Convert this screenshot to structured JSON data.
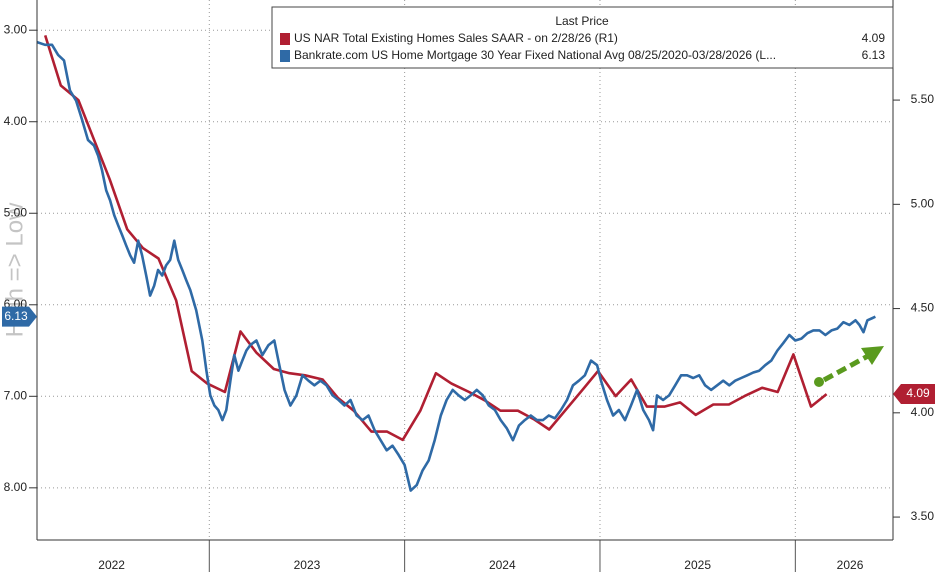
{
  "chart_data": {
    "type": "line",
    "y_label": "High => Low",
    "legend_title": "Last Price",
    "invert_y": true,
    "grid": true,
    "xlim": [
      2022.118,
      2026.5
    ],
    "xticks": [
      {
        "value": 2022.5,
        "label": "2022"
      },
      {
        "value": 2023.5,
        "label": "2023"
      },
      {
        "value": 2024.5,
        "label": "2024"
      },
      {
        "value": 2025.5,
        "label": "2025"
      },
      {
        "value": 2026.28,
        "label": "2026"
      }
    ],
    "ylim": [
      2.67,
      8.57
    ],
    "yticks": [
      {
        "value": 3,
        "label": "3.00"
      },
      {
        "value": 4,
        "label": "4.00"
      },
      {
        "value": 5,
        "label": "5.00"
      },
      {
        "value": 6,
        "label": "6.00"
      },
      {
        "value": 7,
        "label": "7.00"
      },
      {
        "value": 8,
        "label": "8.00"
      }
    ],
    "y2lim": [
      3.39,
      5.98
    ],
    "y2ticks": [
      {
        "value": 3.5,
        "label": "3.50"
      },
      {
        "value": 4,
        "label": "4.00"
      },
      {
        "value": 4.5,
        "label": "4.50"
      },
      {
        "value": 5,
        "label": "5.00"
      },
      {
        "value": 5.5,
        "label": "5.50"
      }
    ],
    "series": [
      {
        "name": "US NAR Total Existing Homes Sales SAAR -  on 2/28/26  (R1)",
        "color": "#b01f32",
        "axis": "y2",
        "last_price_label": "4.09",
        "x": [
          2022.16,
          2022.24,
          2022.33,
          2022.41,
          2022.49,
          2022.58,
          2022.66,
          2022.74,
          2022.83,
          2022.91,
          2022.99,
          2023.08,
          2023.16,
          2023.24,
          2023.33,
          2023.41,
          2023.49,
          2023.58,
          2023.66,
          2023.74,
          2023.83,
          2023.91,
          2023.99,
          2024.08,
          2024.16,
          2024.24,
          2024.33,
          2024.41,
          2024.49,
          2024.58,
          2024.66,
          2024.74,
          2024.83,
          2024.91,
          2024.99,
          2025.08,
          2025.16,
          2025.24,
          2025.33,
          2025.41,
          2025.49,
          2025.58,
          2025.66,
          2025.74,
          2025.83,
          2025.91,
          2025.99,
          2026.08,
          2026.16
        ],
        "values": [
          5.81,
          5.57,
          5.5,
          5.31,
          5.12,
          4.88,
          4.79,
          4.74,
          4.54,
          4.2,
          4.14,
          4.1,
          4.39,
          4.29,
          4.21,
          4.19,
          4.18,
          4.16,
          4.07,
          4.01,
          3.91,
          3.91,
          3.87,
          4.01,
          4.19,
          4.14,
          4.1,
          4.06,
          4.01,
          4.01,
          3.97,
          3.92,
          4.02,
          4.11,
          4.2,
          4.08,
          4.16,
          4.03,
          4.03,
          4.05,
          3.99,
          4.04,
          4.04,
          4.08,
          4.12,
          4.1,
          4.28,
          4.03,
          4.09
        ]
      },
      {
        "name": "Bankrate.com US Home Mortgage 30 Year Fixed National Avg 08/25/2020-03/28/2026  (L...",
        "color": "#2f6aa6",
        "axis": "y",
        "last_price_label": "6.13",
        "x": [
          2022.118,
          2022.159,
          2022.195,
          2022.226,
          2022.256,
          2022.287,
          2022.318,
          2022.349,
          2022.379,
          2022.41,
          2022.431,
          2022.451,
          2022.472,
          2022.492,
          2022.513,
          2022.533,
          2022.554,
          2022.574,
          2022.595,
          2022.615,
          2022.636,
          2022.656,
          2022.677,
          2022.697,
          2022.718,
          2022.738,
          2022.759,
          2022.779,
          2022.8,
          2022.821,
          2022.841,
          2022.862,
          2022.882,
          2022.903,
          2022.933,
          2022.964,
          2022.985,
          2023.005,
          2023.026,
          2023.046,
          2023.067,
          2023.087,
          2023.108,
          2023.128,
          2023.149,
          2023.169,
          2023.19,
          2023.21,
          2023.241,
          2023.272,
          2023.303,
          2023.333,
          2023.354,
          2023.385,
          2023.415,
          2023.446,
          2023.477,
          2023.508,
          2023.538,
          2023.569,
          2023.6,
          2023.631,
          2023.662,
          2023.692,
          2023.723,
          2023.754,
          2023.785,
          2023.815,
          2023.846,
          2023.877,
          2023.908,
          2023.938,
          2023.969,
          2024.0,
          2024.031,
          2024.062,
          2024.092,
          2024.123,
          2024.154,
          2024.185,
          2024.215,
          2024.246,
          2024.277,
          2024.308,
          2024.338,
          2024.369,
          2024.4,
          2024.431,
          2024.462,
          2024.492,
          2024.523,
          2024.554,
          2024.585,
          2024.615,
          2024.646,
          2024.677,
          2024.708,
          2024.738,
          2024.769,
          2024.8,
          2024.831,
          2024.862,
          2024.892,
          2024.923,
          2024.954,
          2024.985,
          2025.005,
          2025.036,
          2025.067,
          2025.097,
          2025.128,
          2025.159,
          2025.19,
          2025.221,
          2025.251,
          2025.272,
          2025.292,
          2025.323,
          2025.354,
          2025.385,
          2025.415,
          2025.446,
          2025.477,
          2025.508,
          2025.538,
          2025.569,
          2025.6,
          2025.631,
          2025.662,
          2025.692,
          2025.723,
          2025.754,
          2025.785,
          2025.815,
          2025.846,
          2025.877,
          2025.908,
          2025.938,
          2025.969,
          2026.0,
          2026.031,
          2026.062,
          2026.092,
          2026.123,
          2026.154,
          2026.185,
          2026.215,
          2026.246,
          2026.277,
          2026.308,
          2026.328,
          2026.349,
          2026.369,
          2026.39,
          2026.41
        ],
        "values": [
          3.13,
          3.16,
          3.16,
          3.27,
          3.33,
          3.66,
          3.77,
          3.98,
          4.2,
          4.26,
          4.37,
          4.53,
          4.75,
          4.86,
          5.02,
          5.13,
          5.24,
          5.35,
          5.46,
          5.54,
          5.3,
          5.46,
          5.68,
          5.9,
          5.79,
          5.62,
          5.68,
          5.57,
          5.51,
          5.3,
          5.51,
          5.62,
          5.73,
          5.84,
          6.06,
          6.39,
          6.72,
          6.99,
          7.1,
          7.15,
          7.26,
          7.15,
          6.83,
          6.55,
          6.72,
          6.61,
          6.5,
          6.44,
          6.39,
          6.55,
          6.44,
          6.39,
          6.61,
          6.93,
          7.1,
          6.99,
          6.77,
          6.83,
          6.88,
          6.83,
          6.88,
          6.99,
          7.04,
          7.1,
          7.04,
          7.21,
          7.26,
          7.21,
          7.37,
          7.48,
          7.59,
          7.54,
          7.64,
          7.75,
          8.03,
          7.97,
          7.81,
          7.7,
          7.48,
          7.21,
          7.04,
          6.93,
          6.99,
          7.04,
          6.99,
          6.93,
          6.99,
          7.1,
          7.15,
          7.26,
          7.35,
          7.48,
          7.32,
          7.26,
          7.21,
          7.26,
          7.26,
          7.21,
          7.24,
          7.15,
          7.04,
          6.88,
          6.83,
          6.77,
          6.61,
          6.66,
          6.83,
          7.04,
          7.21,
          7.15,
          7.26,
          7.1,
          6.93,
          7.15,
          7.26,
          7.37,
          6.99,
          7.04,
          6.99,
          6.88,
          6.77,
          6.77,
          6.8,
          6.77,
          6.88,
          6.93,
          6.88,
          6.83,
          6.88,
          6.83,
          6.8,
          6.77,
          6.74,
          6.72,
          6.66,
          6.61,
          6.5,
          6.42,
          6.33,
          6.39,
          6.37,
          6.31,
          6.28,
          6.28,
          6.33,
          6.28,
          6.26,
          6.19,
          6.22,
          6.17,
          6.22,
          6.3,
          6.17,
          6.15,
          6.13
        ]
      }
    ]
  }
}
